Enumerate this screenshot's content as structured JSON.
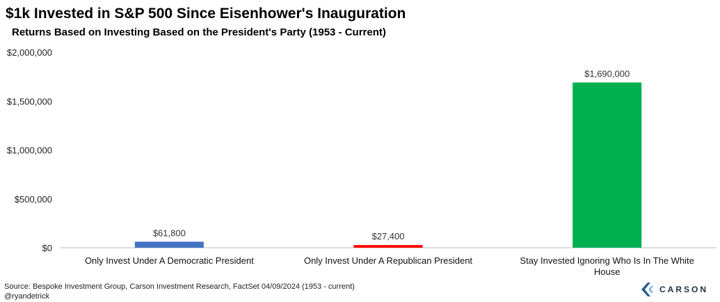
{
  "header": {
    "title": "$1k Invested in S&P 500 Since Eisenhower's Inauguration",
    "subtitle": "Returns Based on Investing Based on the President's Party (1953 - Current)"
  },
  "footer": {
    "source": "Source: Bespoke Investment Group, Carson Investment Research, FactSet   04/09/2024  (1953 - current)",
    "handle": "@ryandetrick"
  },
  "logo": {
    "text": "CARSON",
    "icon": "carson-chevron-logo",
    "color": "#2a5c8f"
  },
  "chart_data": {
    "type": "bar",
    "title": "$1k Invested in S&P 500 Since Eisenhower's Inauguration",
    "subtitle": "Returns Based on Investing Based on the President's Party (1953 - Current)",
    "categories": [
      "Only Invest Under A Democratic President",
      "Only Invest Under A Republican President",
      "Stay Invested Ignoring Who Is In The White House"
    ],
    "category_lines": [
      [
        "Only Invest Under A Democratic President"
      ],
      [
        "Only Invest Under A Republican President"
      ],
      [
        "Stay Invested Ignoring Who Is In The White",
        "House"
      ]
    ],
    "values": [
      61800,
      27400,
      1690000
    ],
    "data_labels": [
      "$61,800",
      "$27,400",
      "$1,690,000"
    ],
    "colors": [
      "#4472c4",
      "#ff0000",
      "#00b050"
    ],
    "ylim": [
      0,
      2000000
    ],
    "yticks": [
      0,
      500000,
      1000000,
      1500000,
      2000000
    ],
    "ytick_labels": [
      "$0",
      "$500,000",
      "$1,000,000",
      "$1,500,000",
      "$2,000,000"
    ],
    "xlabel": "",
    "ylabel": "",
    "grid": false,
    "legend": "none"
  }
}
